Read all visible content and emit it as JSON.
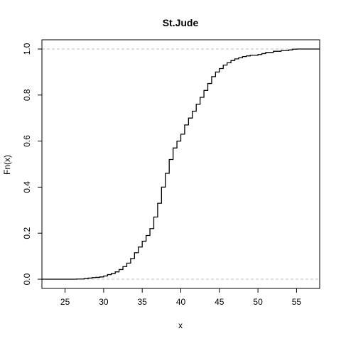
{
  "chart_data": {
    "type": "line",
    "title": "St.Jude",
    "xlabel": "x",
    "ylabel": "Fn(x)",
    "xlim": [
      22,
      58
    ],
    "ylim": [
      -0.04,
      1.04
    ],
    "xticks": [
      25,
      30,
      35,
      40,
      45,
      50,
      55
    ],
    "yticks": [
      0.0,
      0.2,
      0.4,
      0.6,
      0.8,
      1.0
    ],
    "ytick_labels": [
      "0.0",
      "0.2",
      "0.4",
      "0.6",
      "0.8",
      "1.0"
    ],
    "reference_lines": [
      0,
      1
    ],
    "step": true,
    "series": [
      {
        "x": [
          22,
          25,
          26.5,
          27.5,
          28,
          28.5,
          29,
          29.5,
          30,
          30.5,
          31,
          31.5,
          32,
          32.5,
          33,
          33.5,
          34,
          34.5,
          35,
          35.5,
          36,
          36.5,
          37,
          37.5,
          38,
          38.5,
          39,
          39.5,
          40,
          40.5,
          41,
          41.5,
          42,
          42.5,
          43,
          43.5,
          44,
          44.5,
          45,
          45.5,
          46,
          46.5,
          47,
          47.5,
          48,
          48.5,
          49,
          50,
          50.5,
          51,
          52,
          53,
          54,
          54.5,
          55,
          58
        ],
        "y": [
          0.0,
          0.0,
          0.001,
          0.003,
          0.005,
          0.007,
          0.008,
          0.01,
          0.014,
          0.02,
          0.025,
          0.032,
          0.042,
          0.055,
          0.07,
          0.09,
          0.115,
          0.14,
          0.165,
          0.19,
          0.22,
          0.27,
          0.33,
          0.4,
          0.46,
          0.52,
          0.57,
          0.6,
          0.63,
          0.67,
          0.7,
          0.73,
          0.76,
          0.79,
          0.82,
          0.85,
          0.88,
          0.9,
          0.915,
          0.93,
          0.94,
          0.95,
          0.957,
          0.962,
          0.967,
          0.97,
          0.973,
          0.976,
          0.98,
          0.985,
          0.99,
          0.993,
          0.996,
          0.999,
          1.0,
          1.0
        ]
      }
    ],
    "colors": {
      "line": "#000000",
      "reference": "#bebebe",
      "frame": "#000000"
    }
  }
}
